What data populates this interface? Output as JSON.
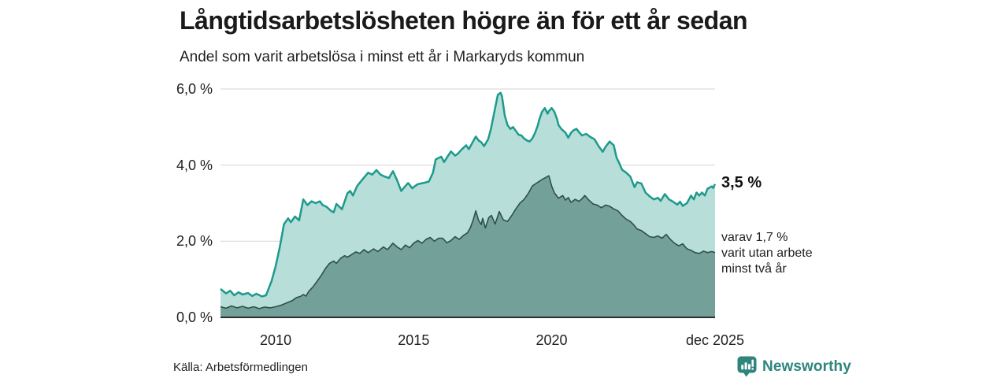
{
  "header": {
    "title": "Långtidsarbetslösheten högre än för ett år sedan",
    "subtitle": "Andel som varit arbetslösa i minst ett år i Markaryds kommun"
  },
  "annotations": {
    "latest_value": "3,5 %",
    "secondary_line1": "varav 1,7 %",
    "secondary_line2": "varit utan arbete",
    "secondary_line3": "minst två år"
  },
  "footer": {
    "source": "Källa: Arbetsförmedlingen",
    "brand": "Newsworthy"
  },
  "colors": {
    "series1_line": "#1d9a8c",
    "series1_fill": "#b7ded8",
    "series2_line": "#2f4f49",
    "series2_fill": "#73a19a",
    "gridline": "#dcdcdc",
    "baseline": "#2d2d2d",
    "brand": "#2e857e"
  },
  "chart_data": {
    "type": "area",
    "title": "Långtidsarbetslösheten högre än för ett år sedan",
    "subtitle": "Andel som varit arbetslösa i minst ett år i Markaryds kommun",
    "unit": "%",
    "x_domain": [
      2008.0,
      2025.92
    ],
    "ylim": [
      0,
      6
    ],
    "grid": true,
    "y_ticks": [
      {
        "value": 0,
        "label": "0,0 %"
      },
      {
        "value": 2,
        "label": "2,0 %"
      },
      {
        "value": 4,
        "label": "4,0 %"
      },
      {
        "value": 6,
        "label": "6,0 %"
      }
    ],
    "x_ticks": [
      {
        "value": 2010,
        "label": "2010"
      },
      {
        "value": 2015,
        "label": "2015"
      },
      {
        "value": 2020,
        "label": "2020"
      },
      {
        "value": 2025.92,
        "label": "dec 2025"
      }
    ],
    "series": [
      {
        "name": "Arbetslösa minst ett år",
        "latest_label": "3,5 %",
        "latest_value": 3.5,
        "points": [
          [
            2008.0,
            0.75
          ],
          [
            2008.2,
            0.63
          ],
          [
            2008.35,
            0.7
          ],
          [
            2008.5,
            0.58
          ],
          [
            2008.65,
            0.66
          ],
          [
            2008.8,
            0.6
          ],
          [
            2009.0,
            0.64
          ],
          [
            2009.15,
            0.56
          ],
          [
            2009.3,
            0.62
          ],
          [
            2009.5,
            0.55
          ],
          [
            2009.65,
            0.58
          ],
          [
            2009.85,
            0.95
          ],
          [
            2010.0,
            1.35
          ],
          [
            2010.15,
            1.85
          ],
          [
            2010.3,
            2.45
          ],
          [
            2010.45,
            2.6
          ],
          [
            2010.55,
            2.5
          ],
          [
            2010.7,
            2.65
          ],
          [
            2010.85,
            2.55
          ],
          [
            2011.0,
            3.1
          ],
          [
            2011.15,
            2.95
          ],
          [
            2011.3,
            3.05
          ],
          [
            2011.45,
            3.0
          ],
          [
            2011.6,
            3.05
          ],
          [
            2011.7,
            2.95
          ],
          [
            2011.85,
            2.9
          ],
          [
            2012.0,
            2.8
          ],
          [
            2012.1,
            2.76
          ],
          [
            2012.2,
            2.98
          ],
          [
            2012.4,
            2.84
          ],
          [
            2012.6,
            3.26
          ],
          [
            2012.7,
            3.32
          ],
          [
            2012.8,
            3.2
          ],
          [
            2012.95,
            3.45
          ],
          [
            2013.15,
            3.63
          ],
          [
            2013.35,
            3.8
          ],
          [
            2013.5,
            3.75
          ],
          [
            2013.65,
            3.87
          ],
          [
            2013.8,
            3.75
          ],
          [
            2013.95,
            3.7
          ],
          [
            2014.1,
            3.66
          ],
          [
            2014.25,
            3.84
          ],
          [
            2014.4,
            3.6
          ],
          [
            2014.55,
            3.32
          ],
          [
            2014.7,
            3.45
          ],
          [
            2014.8,
            3.53
          ],
          [
            2014.95,
            3.39
          ],
          [
            2015.05,
            3.45
          ],
          [
            2015.15,
            3.5
          ],
          [
            2015.35,
            3.53
          ],
          [
            2015.55,
            3.57
          ],
          [
            2015.7,
            3.8
          ],
          [
            2015.8,
            4.15
          ],
          [
            2016.0,
            4.22
          ],
          [
            2016.1,
            4.08
          ],
          [
            2016.25,
            4.25
          ],
          [
            2016.35,
            4.36
          ],
          [
            2016.5,
            4.25
          ],
          [
            2016.6,
            4.3
          ],
          [
            2016.75,
            4.42
          ],
          [
            2016.9,
            4.52
          ],
          [
            2017.0,
            4.42
          ],
          [
            2017.15,
            4.62
          ],
          [
            2017.25,
            4.75
          ],
          [
            2017.35,
            4.65
          ],
          [
            2017.45,
            4.6
          ],
          [
            2017.55,
            4.5
          ],
          [
            2017.7,
            4.68
          ],
          [
            2017.8,
            4.95
          ],
          [
            2017.95,
            5.5
          ],
          [
            2018.05,
            5.85
          ],
          [
            2018.15,
            5.9
          ],
          [
            2018.2,
            5.8
          ],
          [
            2018.3,
            5.3
          ],
          [
            2018.4,
            5.05
          ],
          [
            2018.5,
            4.95
          ],
          [
            2018.6,
            5.0
          ],
          [
            2018.7,
            4.9
          ],
          [
            2018.8,
            4.8
          ],
          [
            2018.9,
            4.78
          ],
          [
            2019.0,
            4.7
          ],
          [
            2019.1,
            4.65
          ],
          [
            2019.2,
            4.62
          ],
          [
            2019.3,
            4.7
          ],
          [
            2019.4,
            4.85
          ],
          [
            2019.5,
            5.05
          ],
          [
            2019.55,
            5.2
          ],
          [
            2019.65,
            5.4
          ],
          [
            2019.75,
            5.5
          ],
          [
            2019.85,
            5.35
          ],
          [
            2019.9,
            5.42
          ],
          [
            2020.0,
            5.5
          ],
          [
            2020.1,
            5.4
          ],
          [
            2020.2,
            5.2
          ],
          [
            2020.25,
            5.05
          ],
          [
            2020.35,
            4.95
          ],
          [
            2020.5,
            4.85
          ],
          [
            2020.6,
            4.72
          ],
          [
            2020.7,
            4.85
          ],
          [
            2020.8,
            4.92
          ],
          [
            2020.9,
            4.95
          ],
          [
            2021.0,
            4.86
          ],
          [
            2021.1,
            4.78
          ],
          [
            2021.25,
            4.82
          ],
          [
            2021.4,
            4.74
          ],
          [
            2021.55,
            4.68
          ],
          [
            2021.7,
            4.5
          ],
          [
            2021.85,
            4.35
          ],
          [
            2021.95,
            4.48
          ],
          [
            2022.1,
            4.62
          ],
          [
            2022.25,
            4.52
          ],
          [
            2022.35,
            4.2
          ],
          [
            2022.45,
            4.05
          ],
          [
            2022.55,
            3.88
          ],
          [
            2022.7,
            3.8
          ],
          [
            2022.85,
            3.7
          ],
          [
            2023.0,
            3.42
          ],
          [
            2023.1,
            3.55
          ],
          [
            2023.25,
            3.52
          ],
          [
            2023.4,
            3.28
          ],
          [
            2023.55,
            3.18
          ],
          [
            2023.7,
            3.1
          ],
          [
            2023.85,
            3.14
          ],
          [
            2023.95,
            3.06
          ],
          [
            2024.1,
            3.24
          ],
          [
            2024.25,
            3.1
          ],
          [
            2024.4,
            3.04
          ],
          [
            2024.55,
            2.96
          ],
          [
            2024.65,
            3.04
          ],
          [
            2024.75,
            2.93
          ],
          [
            2024.9,
            3.0
          ],
          [
            2025.05,
            3.2
          ],
          [
            2025.15,
            3.1
          ],
          [
            2025.25,
            3.28
          ],
          [
            2025.35,
            3.2
          ],
          [
            2025.45,
            3.28
          ],
          [
            2025.55,
            3.2
          ],
          [
            2025.65,
            3.38
          ],
          [
            2025.8,
            3.44
          ],
          [
            2025.85,
            3.4
          ],
          [
            2025.92,
            3.5
          ]
        ]
      },
      {
        "name": "varav utan arbete minst två år",
        "latest_label": "1,7 %",
        "latest_value": 1.7,
        "points": [
          [
            2008.0,
            0.28
          ],
          [
            2008.2,
            0.24
          ],
          [
            2008.4,
            0.3
          ],
          [
            2008.6,
            0.25
          ],
          [
            2008.8,
            0.29
          ],
          [
            2009.0,
            0.24
          ],
          [
            2009.2,
            0.28
          ],
          [
            2009.4,
            0.23
          ],
          [
            2009.6,
            0.27
          ],
          [
            2009.8,
            0.25
          ],
          [
            2010.0,
            0.28
          ],
          [
            2010.2,
            0.32
          ],
          [
            2010.4,
            0.38
          ],
          [
            2010.6,
            0.44
          ],
          [
            2010.75,
            0.52
          ],
          [
            2010.9,
            0.55
          ],
          [
            2011.0,
            0.6
          ],
          [
            2011.1,
            0.56
          ],
          [
            2011.2,
            0.68
          ],
          [
            2011.35,
            0.8
          ],
          [
            2011.5,
            0.95
          ],
          [
            2011.65,
            1.1
          ],
          [
            2011.8,
            1.28
          ],
          [
            2011.95,
            1.42
          ],
          [
            2012.1,
            1.48
          ],
          [
            2012.2,
            1.42
          ],
          [
            2012.35,
            1.55
          ],
          [
            2012.5,
            1.62
          ],
          [
            2012.6,
            1.58
          ],
          [
            2012.75,
            1.65
          ],
          [
            2012.9,
            1.72
          ],
          [
            2013.05,
            1.68
          ],
          [
            2013.2,
            1.78
          ],
          [
            2013.35,
            1.7
          ],
          [
            2013.55,
            1.8
          ],
          [
            2013.7,
            1.73
          ],
          [
            2013.9,
            1.85
          ],
          [
            2014.05,
            1.78
          ],
          [
            2014.25,
            1.95
          ],
          [
            2014.4,
            1.85
          ],
          [
            2014.55,
            1.78
          ],
          [
            2014.7,
            1.9
          ],
          [
            2014.85,
            1.83
          ],
          [
            2015.0,
            1.95
          ],
          [
            2015.15,
            2.02
          ],
          [
            2015.3,
            1.95
          ],
          [
            2015.45,
            2.05
          ],
          [
            2015.6,
            2.1
          ],
          [
            2015.75,
            2.0
          ],
          [
            2015.9,
            2.08
          ],
          [
            2016.05,
            2.08
          ],
          [
            2016.2,
            1.96
          ],
          [
            2016.35,
            2.02
          ],
          [
            2016.5,
            2.12
          ],
          [
            2016.65,
            2.05
          ],
          [
            2016.8,
            2.15
          ],
          [
            2016.95,
            2.22
          ],
          [
            2017.05,
            2.35
          ],
          [
            2017.15,
            2.55
          ],
          [
            2017.25,
            2.8
          ],
          [
            2017.35,
            2.55
          ],
          [
            2017.45,
            2.44
          ],
          [
            2017.5,
            2.6
          ],
          [
            2017.6,
            2.35
          ],
          [
            2017.72,
            2.62
          ],
          [
            2017.82,
            2.68
          ],
          [
            2017.95,
            2.45
          ],
          [
            2018.1,
            2.78
          ],
          [
            2018.25,
            2.56
          ],
          [
            2018.4,
            2.52
          ],
          [
            2018.55,
            2.67
          ],
          [
            2018.7,
            2.85
          ],
          [
            2018.85,
            3.0
          ],
          [
            2019.0,
            3.1
          ],
          [
            2019.15,
            3.25
          ],
          [
            2019.3,
            3.45
          ],
          [
            2019.5,
            3.55
          ],
          [
            2019.65,
            3.62
          ],
          [
            2019.8,
            3.68
          ],
          [
            2019.9,
            3.72
          ],
          [
            2020.0,
            3.45
          ],
          [
            2020.1,
            3.27
          ],
          [
            2020.25,
            3.13
          ],
          [
            2020.4,
            3.2
          ],
          [
            2020.5,
            3.08
          ],
          [
            2020.6,
            3.15
          ],
          [
            2020.7,
            3.02
          ],
          [
            2020.85,
            3.1
          ],
          [
            2021.0,
            3.05
          ],
          [
            2021.1,
            3.12
          ],
          [
            2021.2,
            3.2
          ],
          [
            2021.35,
            3.08
          ],
          [
            2021.5,
            2.98
          ],
          [
            2021.65,
            2.95
          ],
          [
            2021.8,
            2.88
          ],
          [
            2021.95,
            2.95
          ],
          [
            2022.1,
            2.92
          ],
          [
            2022.25,
            2.85
          ],
          [
            2022.4,
            2.8
          ],
          [
            2022.55,
            2.68
          ],
          [
            2022.7,
            2.58
          ],
          [
            2022.85,
            2.52
          ],
          [
            2022.95,
            2.45
          ],
          [
            2023.1,
            2.32
          ],
          [
            2023.25,
            2.28
          ],
          [
            2023.4,
            2.2
          ],
          [
            2023.55,
            2.12
          ],
          [
            2023.7,
            2.1
          ],
          [
            2023.85,
            2.14
          ],
          [
            2024.0,
            2.08
          ],
          [
            2024.15,
            2.18
          ],
          [
            2024.3,
            2.05
          ],
          [
            2024.45,
            1.95
          ],
          [
            2024.6,
            1.88
          ],
          [
            2024.75,
            1.93
          ],
          [
            2024.9,
            1.8
          ],
          [
            2025.05,
            1.76
          ],
          [
            2025.2,
            1.7
          ],
          [
            2025.35,
            1.68
          ],
          [
            2025.5,
            1.74
          ],
          [
            2025.65,
            1.7
          ],
          [
            2025.8,
            1.73
          ],
          [
            2025.92,
            1.7
          ]
        ]
      }
    ],
    "legend_position": "right-annotations"
  }
}
